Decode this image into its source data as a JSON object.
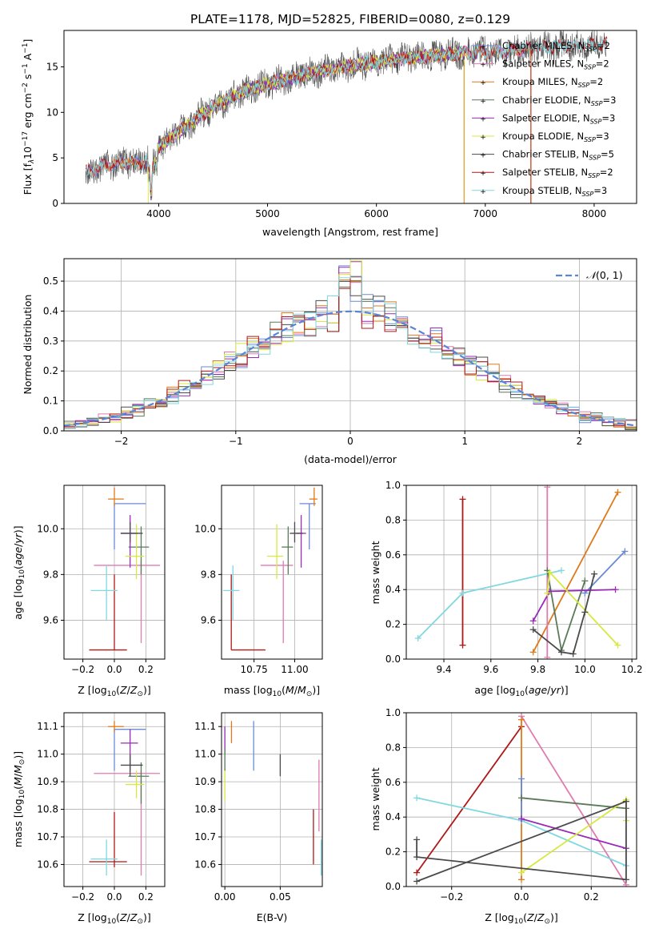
{
  "figure_title": "PLATE=1178, MJD=52825, FIBERID=0080, z=0.129",
  "colors": {
    "Chabrier MILES": "#6a8ad8",
    "Salpeter MILES": "#e07ab0",
    "Kroupa MILES": "#e0791a",
    "Chabrier ELODIE": "#5a7a5a",
    "Salpeter ELODIE": "#9a2ab8",
    "Kroupa ELODIE": "#d8e840",
    "Chabrier STELIB": "#4a4a4a",
    "Salpeter STELIB": "#b01818",
    "Kroupa STELIB": "#80d8e0",
    "normal": "#5b84d6"
  },
  "chart_data": [
    {
      "type": "line",
      "id": "spectrum",
      "xlabel": "wavelength [Angstrom, rest frame]",
      "ylabel": "Flux [f",
      "ylabel_sub": "λ",
      "ylabel_mid": "10",
      "ylabel_sup1": "−17",
      "ylabel_tail1": " erg cm",
      "ylabel_sup2": "−2",
      "ylabel_tail2": " s",
      "ylabel_sup3": "−1",
      "ylabel_tail3": " A",
      "ylabel_sup4": "−1",
      "ylabel_end": "]",
      "xlim": [
        3130,
        8390
      ],
      "ylim": [
        0,
        19
      ],
      "xticks": [
        4000,
        5000,
        6000,
        7000,
        8000
      ],
      "yticks": [
        0,
        5,
        10,
        15
      ],
      "continuum": [
        [
          3340,
          3.4
        ],
        [
          3500,
          4.2
        ],
        [
          3700,
          4.6
        ],
        [
          3850,
          4.3
        ],
        [
          4000,
          6.2
        ],
        [
          4200,
          8.0
        ],
        [
          4400,
          9.8
        ],
        [
          4600,
          11.2
        ],
        [
          4800,
          12.4
        ],
        [
          5000,
          13.1
        ],
        [
          5200,
          13.7
        ],
        [
          5400,
          14.3
        ],
        [
          5600,
          14.8
        ],
        [
          5800,
          15.2
        ],
        [
          6000,
          15.5
        ],
        [
          6200,
          15.9
        ],
        [
          6400,
          16.1
        ],
        [
          6600,
          16.3
        ],
        [
          6800,
          16.5
        ],
        [
          7000,
          16.6
        ],
        [
          7200,
          16.8
        ],
        [
          7400,
          17.0
        ],
        [
          7600,
          17.2
        ],
        [
          7800,
          17.3
        ],
        [
          8000,
          17.4
        ],
        [
          8150,
          17.5
        ]
      ],
      "legend": [
        {
          "name": "Chabrier MILES",
          "ssp": "2",
          "range": [
            3350,
            7420
          ]
        },
        {
          "name": "Salpeter MILES",
          "ssp": "2",
          "range": [
            3350,
            7420
          ]
        },
        {
          "name": "Kroupa MILES",
          "ssp": "2",
          "range": [
            3350,
            7420
          ]
        },
        {
          "name": "Chabrier ELODIE",
          "ssp": "3",
          "range": [
            3900,
            6800
          ]
        },
        {
          "name": "Salpeter ELODIE",
          "ssp": "3",
          "range": [
            3900,
            6800
          ]
        },
        {
          "name": "Kroupa ELODIE",
          "ssp": "3",
          "range": [
            3900,
            6800
          ]
        },
        {
          "name": "Chabrier STELIB",
          "ssp": "5",
          "range": [
            3330,
            8120
          ]
        },
        {
          "name": "Salpeter STELIB",
          "ssp": "2",
          "range": [
            3330,
            8120
          ]
        },
        {
          "name": "Kroupa STELIB",
          "ssp": "3",
          "range": [
            3330,
            8120
          ]
        }
      ]
    },
    {
      "type": "histogram",
      "id": "residuals",
      "xlabel": "(data-model)/error",
      "ylabel": "Normed distribution",
      "xlim": [
        -2.5,
        2.5
      ],
      "ylim": [
        0,
        0.575
      ],
      "xticks": [
        -2,
        -1,
        0,
        1,
        2
      ],
      "yticks": [
        0.0,
        0.1,
        0.2,
        0.3,
        0.4,
        0.5
      ],
      "bin_width": 0.1,
      "grid": true,
      "legend": {
        "label": "N(0,1)",
        "position": "top-right"
      }
    },
    {
      "type": "scatter",
      "id": "age_vs_Z",
      "xlabel": "Z [log10(Z/Z☉)]",
      "ylabel": "age [log10(age/yr)]",
      "xlim": [
        -0.32,
        0.32
      ],
      "ylim": [
        9.43,
        10.19
      ],
      "xticks": [
        -0.2,
        0.0,
        0.2
      ],
      "yticks": [
        9.6,
        9.8,
        10.0
      ],
      "points": [
        {
          "s": "Chabrier MILES",
          "x": 0.0,
          "y": 10.11,
          "xerr": [
            0.0,
            0.2
          ],
          "yerr": [
            0.2,
            0.0
          ]
        },
        {
          "s": "Salpeter MILES",
          "x": 0.17,
          "y": 9.84,
          "xerr": [
            0.3,
            0.12
          ],
          "yerr": [
            0.34,
            0.02
          ]
        },
        {
          "s": "Kroupa MILES",
          "x": 0.0,
          "y": 10.13,
          "xerr": [
            0.04,
            0.06
          ],
          "yerr": [
            0.03,
            0.05
          ]
        },
        {
          "s": "Chabrier ELODIE",
          "x": 0.17,
          "y": 9.92,
          "xerr": [
            0.08,
            0.05
          ],
          "yerr": [
            0.12,
            0.09
          ]
        },
        {
          "s": "Salpeter ELODIE",
          "x": 0.1,
          "y": 9.98,
          "xerr": [
            0.06,
            0.05
          ],
          "yerr": [
            0.15,
            0.08
          ]
        },
        {
          "s": "Kroupa ELODIE",
          "x": 0.14,
          "y": 9.88,
          "xerr": [
            0.07,
            0.05
          ],
          "yerr": [
            0.1,
            0.14
          ]
        },
        {
          "s": "Chabrier STELIB",
          "x": 0.1,
          "y": 9.98,
          "xerr": [
            0.06,
            0.08
          ],
          "yerr": [
            0.04,
            0.05
          ]
        },
        {
          "s": "Salpeter STELIB",
          "x": 0.0,
          "y": 9.47,
          "xerr": [
            0.16,
            0.08
          ],
          "yerr": [
            0.0,
            0.33
          ]
        },
        {
          "s": "Kroupa STELIB",
          "x": -0.05,
          "y": 9.73,
          "xerr": [
            0.1,
            0.07
          ],
          "yerr": [
            0.13,
            0.11
          ]
        }
      ]
    },
    {
      "type": "scatter",
      "id": "age_vs_mass",
      "xlabel": "mass [log10(M/M☉)]",
      "xlim": [
        10.55,
        11.17
      ],
      "ylim": [
        9.43,
        10.19
      ],
      "xticks": [
        10.75,
        11.0
      ],
      "yticks": [
        9.6,
        9.8,
        10.0
      ],
      "points": [
        {
          "s": "Chabrier MILES",
          "x": 11.09,
          "y": 10.11,
          "xerr": [
            0.06,
            0.04
          ],
          "yerr": [
            0.2,
            0.0
          ]
        },
        {
          "s": "Salpeter MILES",
          "x": 10.93,
          "y": 9.84,
          "xerr": [
            0.14,
            0.06
          ],
          "yerr": [
            0.34,
            0.02
          ]
        },
        {
          "s": "Kroupa MILES",
          "x": 11.12,
          "y": 10.13,
          "xerr": [
            0.03,
            0.02
          ],
          "yerr": [
            0.03,
            0.05
          ]
        },
        {
          "s": "Chabrier ELODIE",
          "x": 10.96,
          "y": 9.92,
          "xerr": [
            0.04,
            0.03
          ],
          "yerr": [
            0.12,
            0.09
          ]
        },
        {
          "s": "Salpeter ELODIE",
          "x": 11.04,
          "y": 9.98,
          "xerr": [
            0.03,
            0.03
          ],
          "yerr": [
            0.15,
            0.08
          ]
        },
        {
          "s": "Kroupa ELODIE",
          "x": 10.89,
          "y": 9.88,
          "xerr": [
            0.06,
            0.04
          ],
          "yerr": [
            0.1,
            0.14
          ]
        },
        {
          "s": "Chabrier STELIB",
          "x": 11.0,
          "y": 9.98,
          "xerr": [
            0.03,
            0.05
          ],
          "yerr": [
            0.04,
            0.05
          ]
        },
        {
          "s": "Salpeter STELIB",
          "x": 10.61,
          "y": 9.47,
          "xerr": [
            0.0,
            0.21
          ],
          "yerr": [
            0.0,
            0.33
          ]
        },
        {
          "s": "Kroupa STELIB",
          "x": 10.62,
          "y": 9.73,
          "xerr": [
            0.06,
            0.04
          ],
          "yerr": [
            0.13,
            0.11
          ]
        }
      ]
    },
    {
      "type": "line",
      "id": "weight_vs_age",
      "xlabel": "age [log10(age/yr)]",
      "ylabel": "mass weight",
      "xlim": [
        9.24,
        10.22
      ],
      "ylim": [
        0,
        1.0
      ],
      "xticks": [
        9.4,
        9.6,
        9.8,
        10.0,
        10.2
      ],
      "yticks": [
        0.0,
        0.2,
        0.4,
        0.6,
        0.8,
        1.0
      ],
      "grid": true,
      "series": [
        {
          "s": "Kroupa MILES",
          "x": [
            9.78,
            10.14
          ],
          "y": [
            0.04,
            0.96
          ]
        },
        {
          "s": "Chabrier MILES",
          "x": [
            10.0,
            10.17
          ],
          "y": [
            0.38,
            0.62
          ]
        },
        {
          "s": "Salpeter MILES",
          "x": [
            9.84,
            9.84
          ],
          "y": [
            0.01,
            0.99
          ]
        },
        {
          "s": "Salpeter STELIB",
          "x": [
            9.48,
            9.48
          ],
          "y": [
            0.08,
            0.92
          ]
        },
        {
          "s": "Kroupa STELIB",
          "x": [
            9.29,
            9.48,
            9.9
          ],
          "y": [
            0.12,
            0.38,
            0.51
          ]
        },
        {
          "s": "Chabrier ELODIE",
          "x": [
            9.84,
            9.9,
            10.0
          ],
          "y": [
            0.51,
            0.05,
            0.45
          ]
        },
        {
          "s": "Salpeter ELODIE",
          "x": [
            9.78,
            9.85,
            10.13
          ],
          "y": [
            0.22,
            0.39,
            0.4
          ]
        },
        {
          "s": "Kroupa ELODIE",
          "x": [
            9.84,
            9.85,
            10.14
          ],
          "y": [
            0.38,
            0.5,
            0.08
          ]
        },
        {
          "s": "Chabrier STELIB",
          "x": [
            9.78,
            9.9,
            9.95,
            10.0,
            10.04
          ],
          "y": [
            0.17,
            0.04,
            0.03,
            0.27,
            0.49
          ]
        }
      ]
    },
    {
      "type": "scatter",
      "id": "mass_vs_Z",
      "xlabel": "Z [log10(Z/Z☉)]",
      "ylabel": "mass [log10(M/M☉)]",
      "xlim": [
        -0.32,
        0.32
      ],
      "ylim": [
        10.52,
        11.15
      ],
      "xticks": [
        -0.2,
        0.0,
        0.2
      ],
      "yticks": [
        10.6,
        10.7,
        10.8,
        10.9,
        11.0,
        11.1
      ],
      "points": [
        {
          "s": "Chabrier MILES",
          "x": 0.0,
          "y": 11.09,
          "xerr": [
            0.0,
            0.2
          ],
          "yerr": [
            0.15,
            0.0
          ]
        },
        {
          "s": "Salpeter MILES",
          "x": 0.17,
          "y": 10.93,
          "xerr": [
            0.3,
            0.12
          ],
          "yerr": [
            0.37,
            0.01
          ]
        },
        {
          "s": "Kroupa MILES",
          "x": 0.0,
          "y": 11.1,
          "xerr": [
            0.04,
            0.06
          ],
          "yerr": [
            0.02,
            0.02
          ]
        },
        {
          "s": "Chabrier ELODIE",
          "x": 0.17,
          "y": 10.92,
          "xerr": [
            0.08,
            0.05
          ],
          "yerr": [
            0.1,
            0.05
          ]
        },
        {
          "s": "Salpeter ELODIE",
          "x": 0.1,
          "y": 11.04,
          "xerr": [
            0.06,
            0.05
          ],
          "yerr": [
            0.1,
            0.05
          ]
        },
        {
          "s": "Kroupa ELODIE",
          "x": 0.14,
          "y": 10.89,
          "xerr": [
            0.07,
            0.05
          ],
          "yerr": [
            0.05,
            0.05
          ]
        },
        {
          "s": "Chabrier STELIB",
          "x": 0.1,
          "y": 10.96,
          "xerr": [
            0.06,
            0.08
          ],
          "yerr": [
            0.04,
            0.04
          ]
        },
        {
          "s": "Salpeter STELIB",
          "x": 0.0,
          "y": 10.61,
          "xerr": [
            0.16,
            0.08
          ],
          "yerr": [
            0.02,
            0.18
          ]
        },
        {
          "s": "Kroupa STELIB",
          "x": -0.05,
          "y": 10.62,
          "xerr": [
            0.1,
            0.07
          ],
          "yerr": [
            0.06,
            0.07
          ]
        }
      ]
    },
    {
      "type": "scatter",
      "id": "mass_vs_EBV",
      "xlabel": "E(B-V)",
      "xlim": [
        -0.003,
        0.088
      ],
      "ylim": [
        10.52,
        11.15
      ],
      "xticks": [
        0.0,
        0.05
      ],
      "yticks": [
        10.6,
        10.7,
        10.8,
        10.9,
        11.0,
        11.1
      ],
      "points": [
        {
          "s": "Chabrier MILES",
          "x": 0.026,
          "y": 11.04,
          "yerr": [
            0.1,
            0.08
          ]
        },
        {
          "s": "Kroupa MILES",
          "x": 0.006,
          "y": 11.08,
          "yerr": [
            0.04,
            0.04
          ]
        },
        {
          "s": "Salpeter ELODIE",
          "x": 0.0,
          "y": 11.06,
          "yerr": [
            0.06,
            0.04
          ]
        },
        {
          "s": "Kroupa ELODIE",
          "x": 0.0,
          "y": 10.88,
          "yerr": [
            0.05,
            0.07
          ]
        },
        {
          "s": "Chabrier ELODIE",
          "x": 0.0,
          "y": 10.98,
          "yerr": [
            0.04,
            0.04
          ]
        },
        {
          "s": "Chabrier STELIB",
          "x": 0.05,
          "y": 10.96,
          "yerr": [
            0.04,
            0.04
          ]
        },
        {
          "s": "Salpeter STELIB",
          "x": 0.08,
          "y": 10.7,
          "yerr": [
            0.1,
            0.1
          ]
        },
        {
          "s": "Salpeter MILES",
          "x": 0.085,
          "y": 10.86,
          "yerr": [
            0.14,
            0.12
          ]
        },
        {
          "s": "Kroupa STELIB",
          "x": 0.087,
          "y": 10.62,
          "yerr": [
            0.06,
            0.07
          ]
        }
      ]
    },
    {
      "type": "line",
      "id": "weight_vs_Z",
      "xlabel": "Z [log10(Z/Z☉)]",
      "ylabel": "mass weight",
      "xlim": [
        -0.33,
        0.33
      ],
      "ylim": [
        0,
        1.0
      ],
      "xticks": [
        -0.2,
        0.0,
        0.2
      ],
      "yticks": [
        0.0,
        0.2,
        0.4,
        0.6,
        0.8,
        1.0
      ],
      "grid": true,
      "series": [
        {
          "s": "Salpeter STELIB",
          "x": [
            -0.3,
            0.0
          ],
          "y": [
            0.08,
            0.92
          ]
        },
        {
          "s": "Salpeter MILES",
          "x": [
            0.0,
            0.3
          ],
          "y": [
            0.98,
            0.01
          ]
        },
        {
          "s": "Kroupa MILES",
          "x": [
            0.0,
            0.0
          ],
          "y": [
            0.04,
            0.96
          ]
        },
        {
          "s": "Chabrier MILES",
          "x": [
            0.0,
            0.0
          ],
          "y": [
            0.38,
            0.62
          ]
        },
        {
          "s": "Kroupa STELIB",
          "x": [
            -0.3,
            0.0,
            0.3
          ],
          "y": [
            0.51,
            0.38,
            0.12
          ]
        },
        {
          "s": "Chabrier ELODIE",
          "x": [
            0.0,
            0.3
          ],
          "y": [
            0.51,
            0.45
          ]
        },
        {
          "s": "Salpeter ELODIE",
          "x": [
            0.0,
            0.3
          ],
          "y": [
            0.39,
            0.22
          ]
        },
        {
          "s": "Kroupa ELODIE",
          "x": [
            0.0,
            0.3,
            0.3
          ],
          "y": [
            0.08,
            0.5,
            0.38
          ]
        },
        {
          "s": "Chabrier STELIB",
          "x": [
            -0.3,
            0.3,
            0.3,
            -0.3,
            -0.3
          ],
          "y": [
            0.03,
            0.49,
            0.04,
            0.17,
            0.27
          ]
        }
      ]
    }
  ]
}
